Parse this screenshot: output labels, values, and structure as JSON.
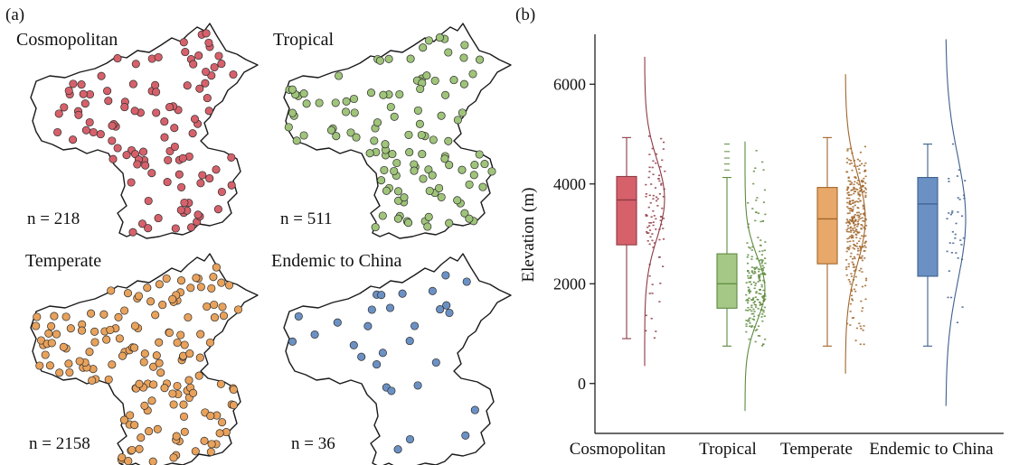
{
  "panels": {
    "a_label": "(a)",
    "b_label": "(b)"
  },
  "maps": [
    {
      "title": "Cosmopolitan",
      "count": "n = 218",
      "color": "#d6616b",
      "seed": 11,
      "points": 110
    },
    {
      "title": "Tropical",
      "count": "n = 511",
      "color": "#9fc47a",
      "seed": 23,
      "points": 120
    },
    {
      "title": "Temperate",
      "count": "n = 2158",
      "color": "#e8a25c",
      "seed": 37,
      "points": 160
    },
    {
      "title": "Endemic to China",
      "count": "n = 36",
      "color": "#6b91c4",
      "seed": 53,
      "points": 30
    }
  ],
  "chart_data": {
    "type": "box",
    "ylabel": "Elevation (m)",
    "ylim": [
      -1000,
      7000
    ],
    "yticks": [
      0,
      2000,
      4000,
      6000
    ],
    "grid": false,
    "categories": [
      "Cosmopolitan",
      "Tropical",
      "Temperate",
      "Endemic to China"
    ],
    "series": [
      {
        "name": "Cosmopolitan",
        "color": "#d6616b",
        "stroke": "#8e3a45",
        "min": 900,
        "q1": 2780,
        "median": 3680,
        "q3": 4150,
        "max": 4930,
        "outliers": [],
        "density_range": [
          350,
          6550
        ],
        "density_peak": 3700,
        "density_sd": 800,
        "points_range": [
          900,
          5000
        ],
        "n_points": 90
      },
      {
        "name": "Tropical",
        "color": "#a6c887",
        "stroke": "#5e8a3e",
        "min": 750,
        "q1": 1510,
        "median": 2000,
        "q3": 2600,
        "max": 4130,
        "outliers": [
          4280,
          4400,
          4520,
          4650,
          4800
        ],
        "density_range": [
          -550,
          4850
        ],
        "density_peak": 1900,
        "density_sd": 650,
        "points_range": [
          750,
          4800
        ],
        "n_points": 200
      },
      {
        "name": "Temperate",
        "color": "#e8a86a",
        "stroke": "#a0662b",
        "min": 750,
        "q1": 2400,
        "median": 3300,
        "q3": 3930,
        "max": 4930,
        "outliers": [],
        "density_range": [
          200,
          6200
        ],
        "density_peak": 3300,
        "density_sd": 900,
        "points_range": [
          750,
          4950
        ],
        "n_points": 320
      },
      {
        "name": "Endemic to China",
        "color": "#6b91c4",
        "stroke": "#3e5f8e",
        "min": 750,
        "q1": 2150,
        "median": 3600,
        "q3": 4130,
        "max": 4800,
        "outliers": [],
        "density_range": [
          -450,
          6900
        ],
        "density_peak": 3300,
        "density_sd": 1250,
        "points_range": [
          750,
          4800
        ],
        "n_points": 36
      }
    ]
  }
}
